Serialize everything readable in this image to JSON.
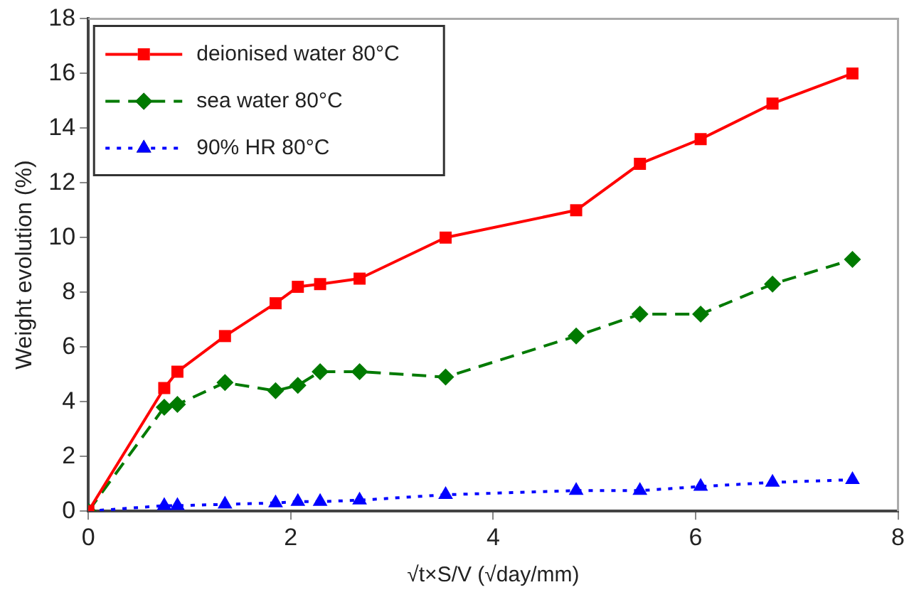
{
  "chart_data": {
    "type": "line",
    "xlabel": "√t×S/V (√day/mm)",
    "ylabel": "Weight evolution (%)",
    "x": [
      0,
      0.75,
      0.88,
      1.35,
      1.85,
      2.07,
      2.29,
      2.68,
      3.53,
      4.82,
      5.45,
      6.05,
      6.76,
      7.55
    ],
    "xlim": [
      0,
      8
    ],
    "xticks": [
      0,
      2,
      4,
      6,
      8
    ],
    "ylim": [
      0,
      18
    ],
    "yticks": [
      0,
      2,
      4,
      6,
      8,
      10,
      12,
      14,
      16,
      18
    ],
    "grid": false,
    "legend": "top left",
    "series": [
      {
        "name": "deionised water 80°C",
        "color": "#ff0000",
        "marker": "square",
        "line_style": "solid",
        "values": [
          0,
          4.5,
          5.1,
          6.4,
          7.6,
          8.2,
          8.3,
          8.5,
          10.0,
          11.0,
          12.7,
          13.6,
          14.9,
          16.0
        ]
      },
      {
        "name": "sea water 80°C",
        "color": "#007a00",
        "marker": "diamond",
        "line_style": "dashed",
        "values": [
          0,
          3.8,
          3.9,
          4.7,
          4.4,
          4.6,
          5.1,
          5.1,
          4.9,
          6.4,
          7.2,
          7.2,
          8.3,
          9.2
        ]
      },
      {
        "name": "90% HR 80°C",
        "color": "#0000ff",
        "marker": "triangle",
        "line_style": "dotted",
        "values": [
          0,
          0.2,
          0.2,
          0.25,
          0.3,
          0.35,
          0.35,
          0.4,
          0.6,
          0.75,
          0.75,
          0.9,
          1.05,
          1.15
        ]
      }
    ]
  }
}
